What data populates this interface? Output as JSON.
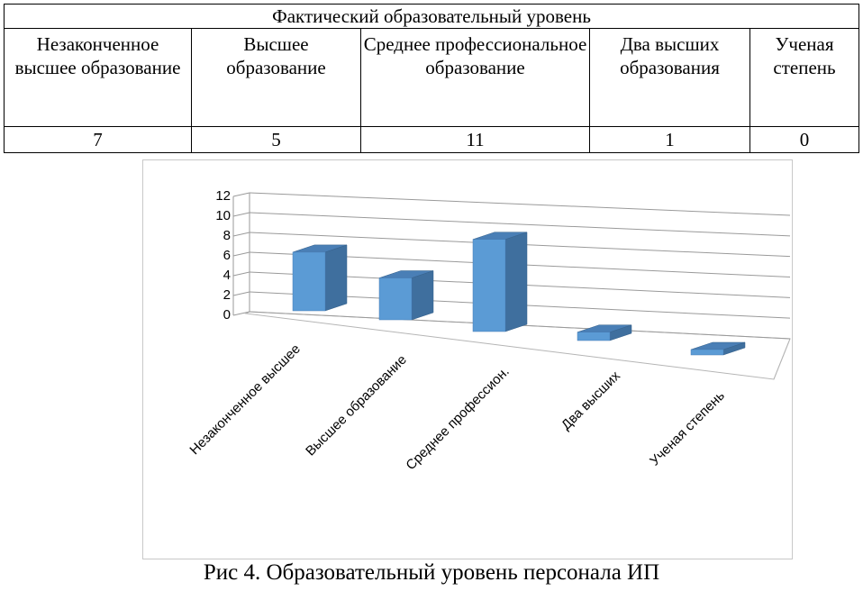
{
  "table": {
    "header": "Фактический образовательный уровень",
    "columns": [
      "Незаконченное высшее образование",
      "Высшее образование",
      "Среднее профессиональное образование",
      "Два высших образования",
      "Ученая степень"
    ],
    "values": [
      "7",
      "5",
      "11",
      "1",
      "0"
    ]
  },
  "chart_data": {
    "type": "bar",
    "categories": [
      "Незаконченное высшее",
      "Высшее образование",
      "Среднее профессион.",
      "Два высших",
      "Ученая степень"
    ],
    "series": [
      {
        "values": [
          7,
          5,
          11,
          1,
          0
        ]
      }
    ],
    "yticks": [
      "0",
      "2",
      "4",
      "6",
      "8",
      "10",
      "12"
    ],
    "ylim": [
      0,
      12
    ],
    "grid": true,
    "bar_color": "#5b9bd5",
    "title": "",
    "xlabel": "",
    "ylabel": ""
  },
  "caption": "Рис 4. Образовательный уровень персонала ИП"
}
